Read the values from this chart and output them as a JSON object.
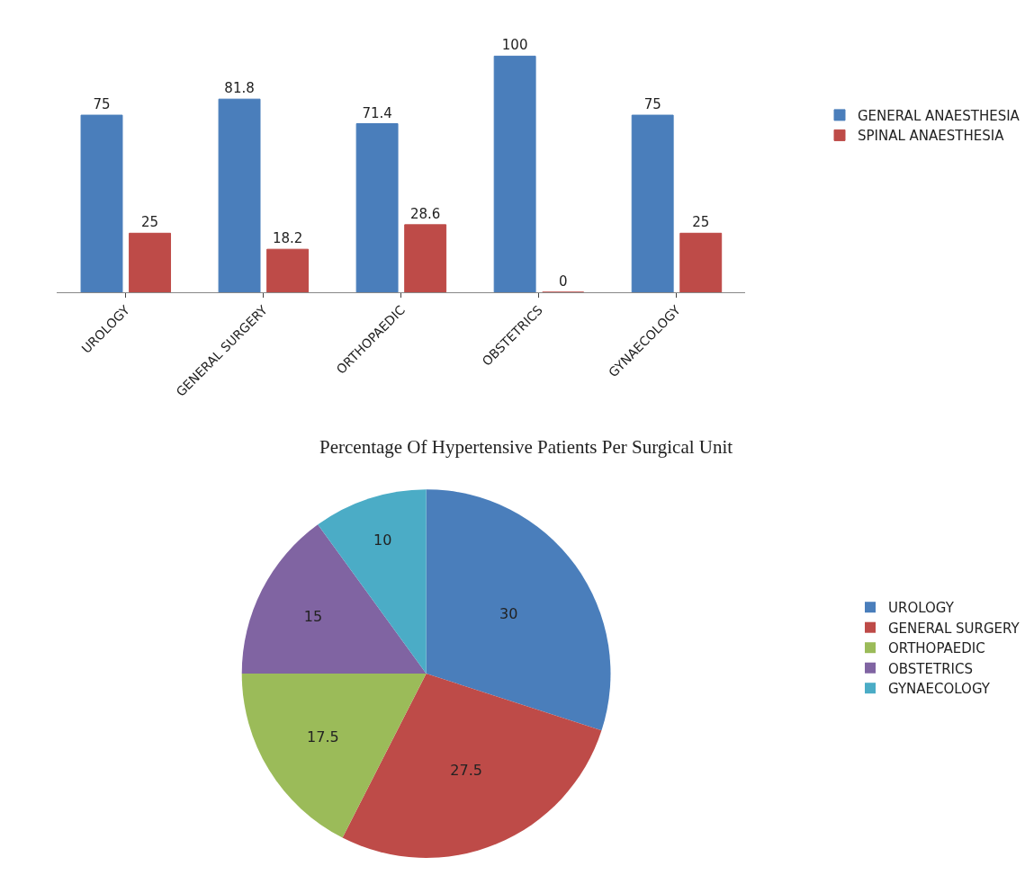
{
  "chart_data": [
    {
      "type": "bar",
      "categories": [
        "UROLOGY",
        "GENERAL SURGERY",
        "ORTHOPAEDIC",
        "OBSTETRICS",
        "GYNAECOLOGY"
      ],
      "series": [
        {
          "name": "GENERAL ANAESTHESIA",
          "color": "#4a7ebb",
          "values": [
            75,
            81.8,
            71.4,
            100,
            75
          ]
        },
        {
          "name": "SPINAL ANAESTHESIA",
          "color": "#be4b48",
          "values": [
            25,
            18.2,
            28.6,
            0,
            25
          ]
        }
      ],
      "data_labels": true,
      "legend": "right"
    },
    {
      "type": "pie",
      "title": "Percentage Of Hypertensive Patients Per Surgical Unit",
      "categories": [
        "UROLOGY",
        "GENERAL SURGERY",
        "ORTHOPAEDIC",
        "OBSTETRICS",
        "GYNAECOLOGY"
      ],
      "values": [
        30,
        27.5,
        17.5,
        15,
        10
      ],
      "colors": [
        "#4a7ebb",
        "#be4b48",
        "#9bbb59",
        "#8064a2",
        "#4bacc6"
      ],
      "data_labels": true,
      "legend": "right"
    }
  ]
}
